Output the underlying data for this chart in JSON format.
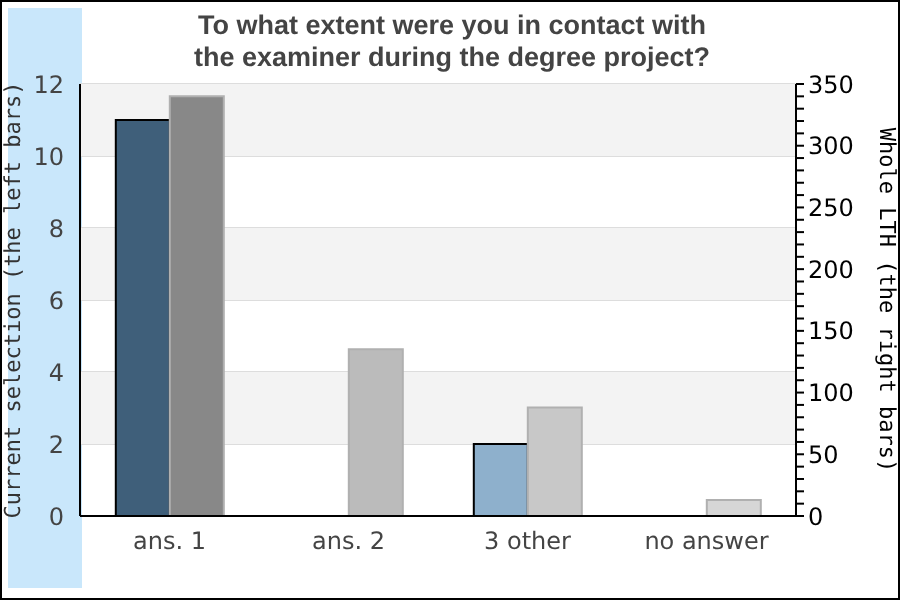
{
  "chart_data": {
    "type": "bar",
    "title": "To what extent were you in contact with the examiner during the degree project?",
    "ylabel": "Current selection (the left bars)",
    "y2label": "Whole LTH (the right bars)",
    "categories": [
      "ans. 1",
      "ans. 2",
      "3 other",
      "no answer"
    ],
    "series": [
      {
        "colors": [
          "#3f5f7a",
          "#3f5f7a",
          "#8eb0cc",
          "#8eb0cc"
        ],
        "values": [
          11,
          null,
          2,
          null
        ]
      },
      {
        "axis": "y2",
        "colors": [
          "#888888",
          "#bbbbbb",
          "#c8c8c8",
          "#d6d6d6"
        ],
        "values": [
          340,
          135,
          88,
          13
        ]
      }
    ],
    "ylim": [
      0,
      12
    ],
    "yticks": [
      0,
      2,
      4,
      6,
      8,
      10,
      12
    ],
    "y2lim": [
      0,
      350
    ],
    "y2ticks": [
      0,
      {
        "value": 10,
        "label": null
      },
      {
        "value": 20,
        "label": null
      },
      {
        "value": 30,
        "label": null
      },
      {
        "value": 40,
        "label": null
      },
      50,
      {
        "value": 60,
        "label": null
      },
      {
        "value": 70,
        "label": null
      },
      {
        "value": 80,
        "label": null
      },
      {
        "value": 90,
        "label": null
      },
      100,
      {
        "value": 110,
        "label": null
      },
      {
        "value": 120,
        "label": null
      },
      {
        "value": 130,
        "label": null
      },
      {
        "value": 140,
        "label": null
      },
      150,
      {
        "value": 160,
        "label": null
      },
      {
        "value": 170,
        "label": null
      },
      {
        "value": 180,
        "label": null
      },
      {
        "value": 190,
        "label": null
      },
      200,
      {
        "value": 210,
        "label": null
      },
      {
        "value": 220,
        "label": null
      },
      {
        "value": 230,
        "label": null
      },
      {
        "value": 240,
        "label": null
      },
      250,
      {
        "value": 260,
        "label": null
      },
      {
        "value": 270,
        "label": null
      },
      {
        "value": 280,
        "label": null
      },
      {
        "value": 290,
        "label": null
      },
      300,
      {
        "value": 310,
        "label": null
      },
      {
        "value": 320,
        "label": null
      },
      {
        "value": 330,
        "label": null
      },
      {
        "value": 340,
        "label": null
      },
      350
    ],
    "bands": [
      {
        "axis": "y",
        "from": 10,
        "to": 12,
        "color": "#f3f3f3"
      },
      {
        "axis": "y",
        "from": 6,
        "to": 8,
        "color": "#f3f3f3"
      },
      {
        "axis": "y",
        "from": 2,
        "to": 4,
        "color": "#f3f3f3"
      }
    ],
    "grid": "y",
    "legend": false
  }
}
